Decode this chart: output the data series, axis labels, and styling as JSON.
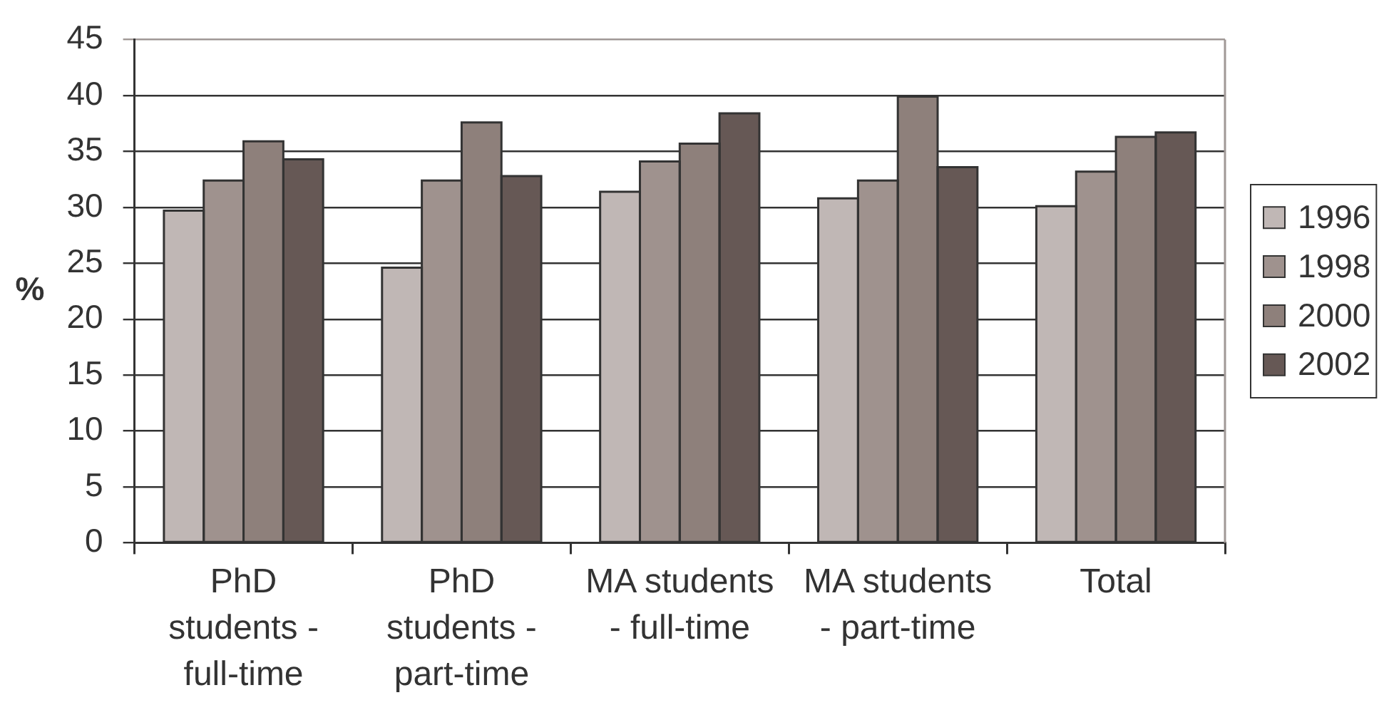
{
  "chart_data": {
    "type": "bar",
    "categories": [
      "PhD students - full-time",
      "PhD students - part-time",
      "MA students - full-time",
      "MA students - part-time",
      "Total"
    ],
    "ylabel": "%",
    "series": [
      {
        "name": "1996",
        "color": "#c0b7b5",
        "values": [
          29.7,
          24.6,
          31.4,
          30.8,
          30.1
        ]
      },
      {
        "name": "1998",
        "color": "#9f928e",
        "values": [
          32.4,
          32.4,
          34.1,
          32.4,
          33.2
        ]
      },
      {
        "name": "2000",
        "color": "#8e807b",
        "values": [
          35.9,
          37.6,
          35.7,
          39.9,
          36.3
        ]
      },
      {
        "name": "2002",
        "color": "#665855",
        "values": [
          34.3,
          32.8,
          38.4,
          33.6,
          36.7
        ]
      }
    ],
    "ylim": [
      0,
      45
    ],
    "yticks": [
      0,
      5,
      10,
      15,
      20,
      25,
      30,
      35,
      40,
      45
    ],
    "grid": "y",
    "legend": "right"
  }
}
